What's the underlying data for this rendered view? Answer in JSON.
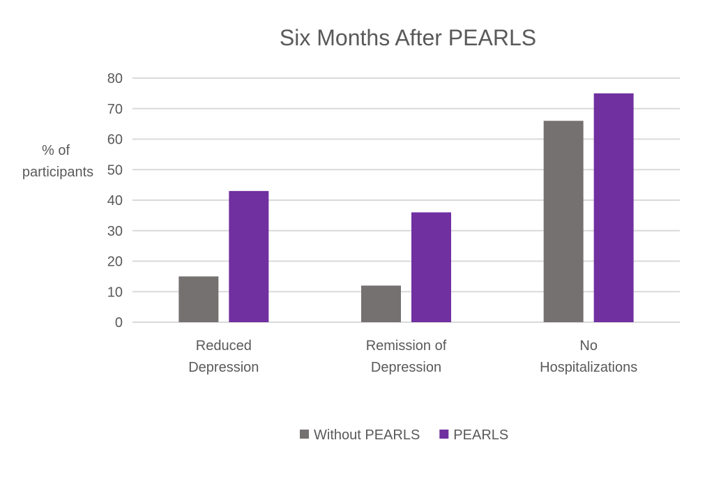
{
  "chart_data": {
    "type": "bar",
    "title": "Six Months After PEARLS",
    "ylabel": [
      "% of",
      "participants"
    ],
    "xlabel": "",
    "ylim": [
      0,
      80
    ],
    "yticks": [
      0,
      10,
      20,
      30,
      40,
      50,
      60,
      70,
      80
    ],
    "grid": true,
    "legend_position": "bottom",
    "categories": [
      [
        "Reduced",
        "Depression"
      ],
      [
        "Remission of",
        "Depression"
      ],
      [
        "No",
        "Hospitalizations"
      ]
    ],
    "series": [
      {
        "name": "Without PEARLS",
        "color": "#767171",
        "values": [
          15,
          12,
          66
        ]
      },
      {
        "name": "PEARLS",
        "color": "#7030A0",
        "values": [
          43,
          36,
          75
        ]
      }
    ]
  }
}
